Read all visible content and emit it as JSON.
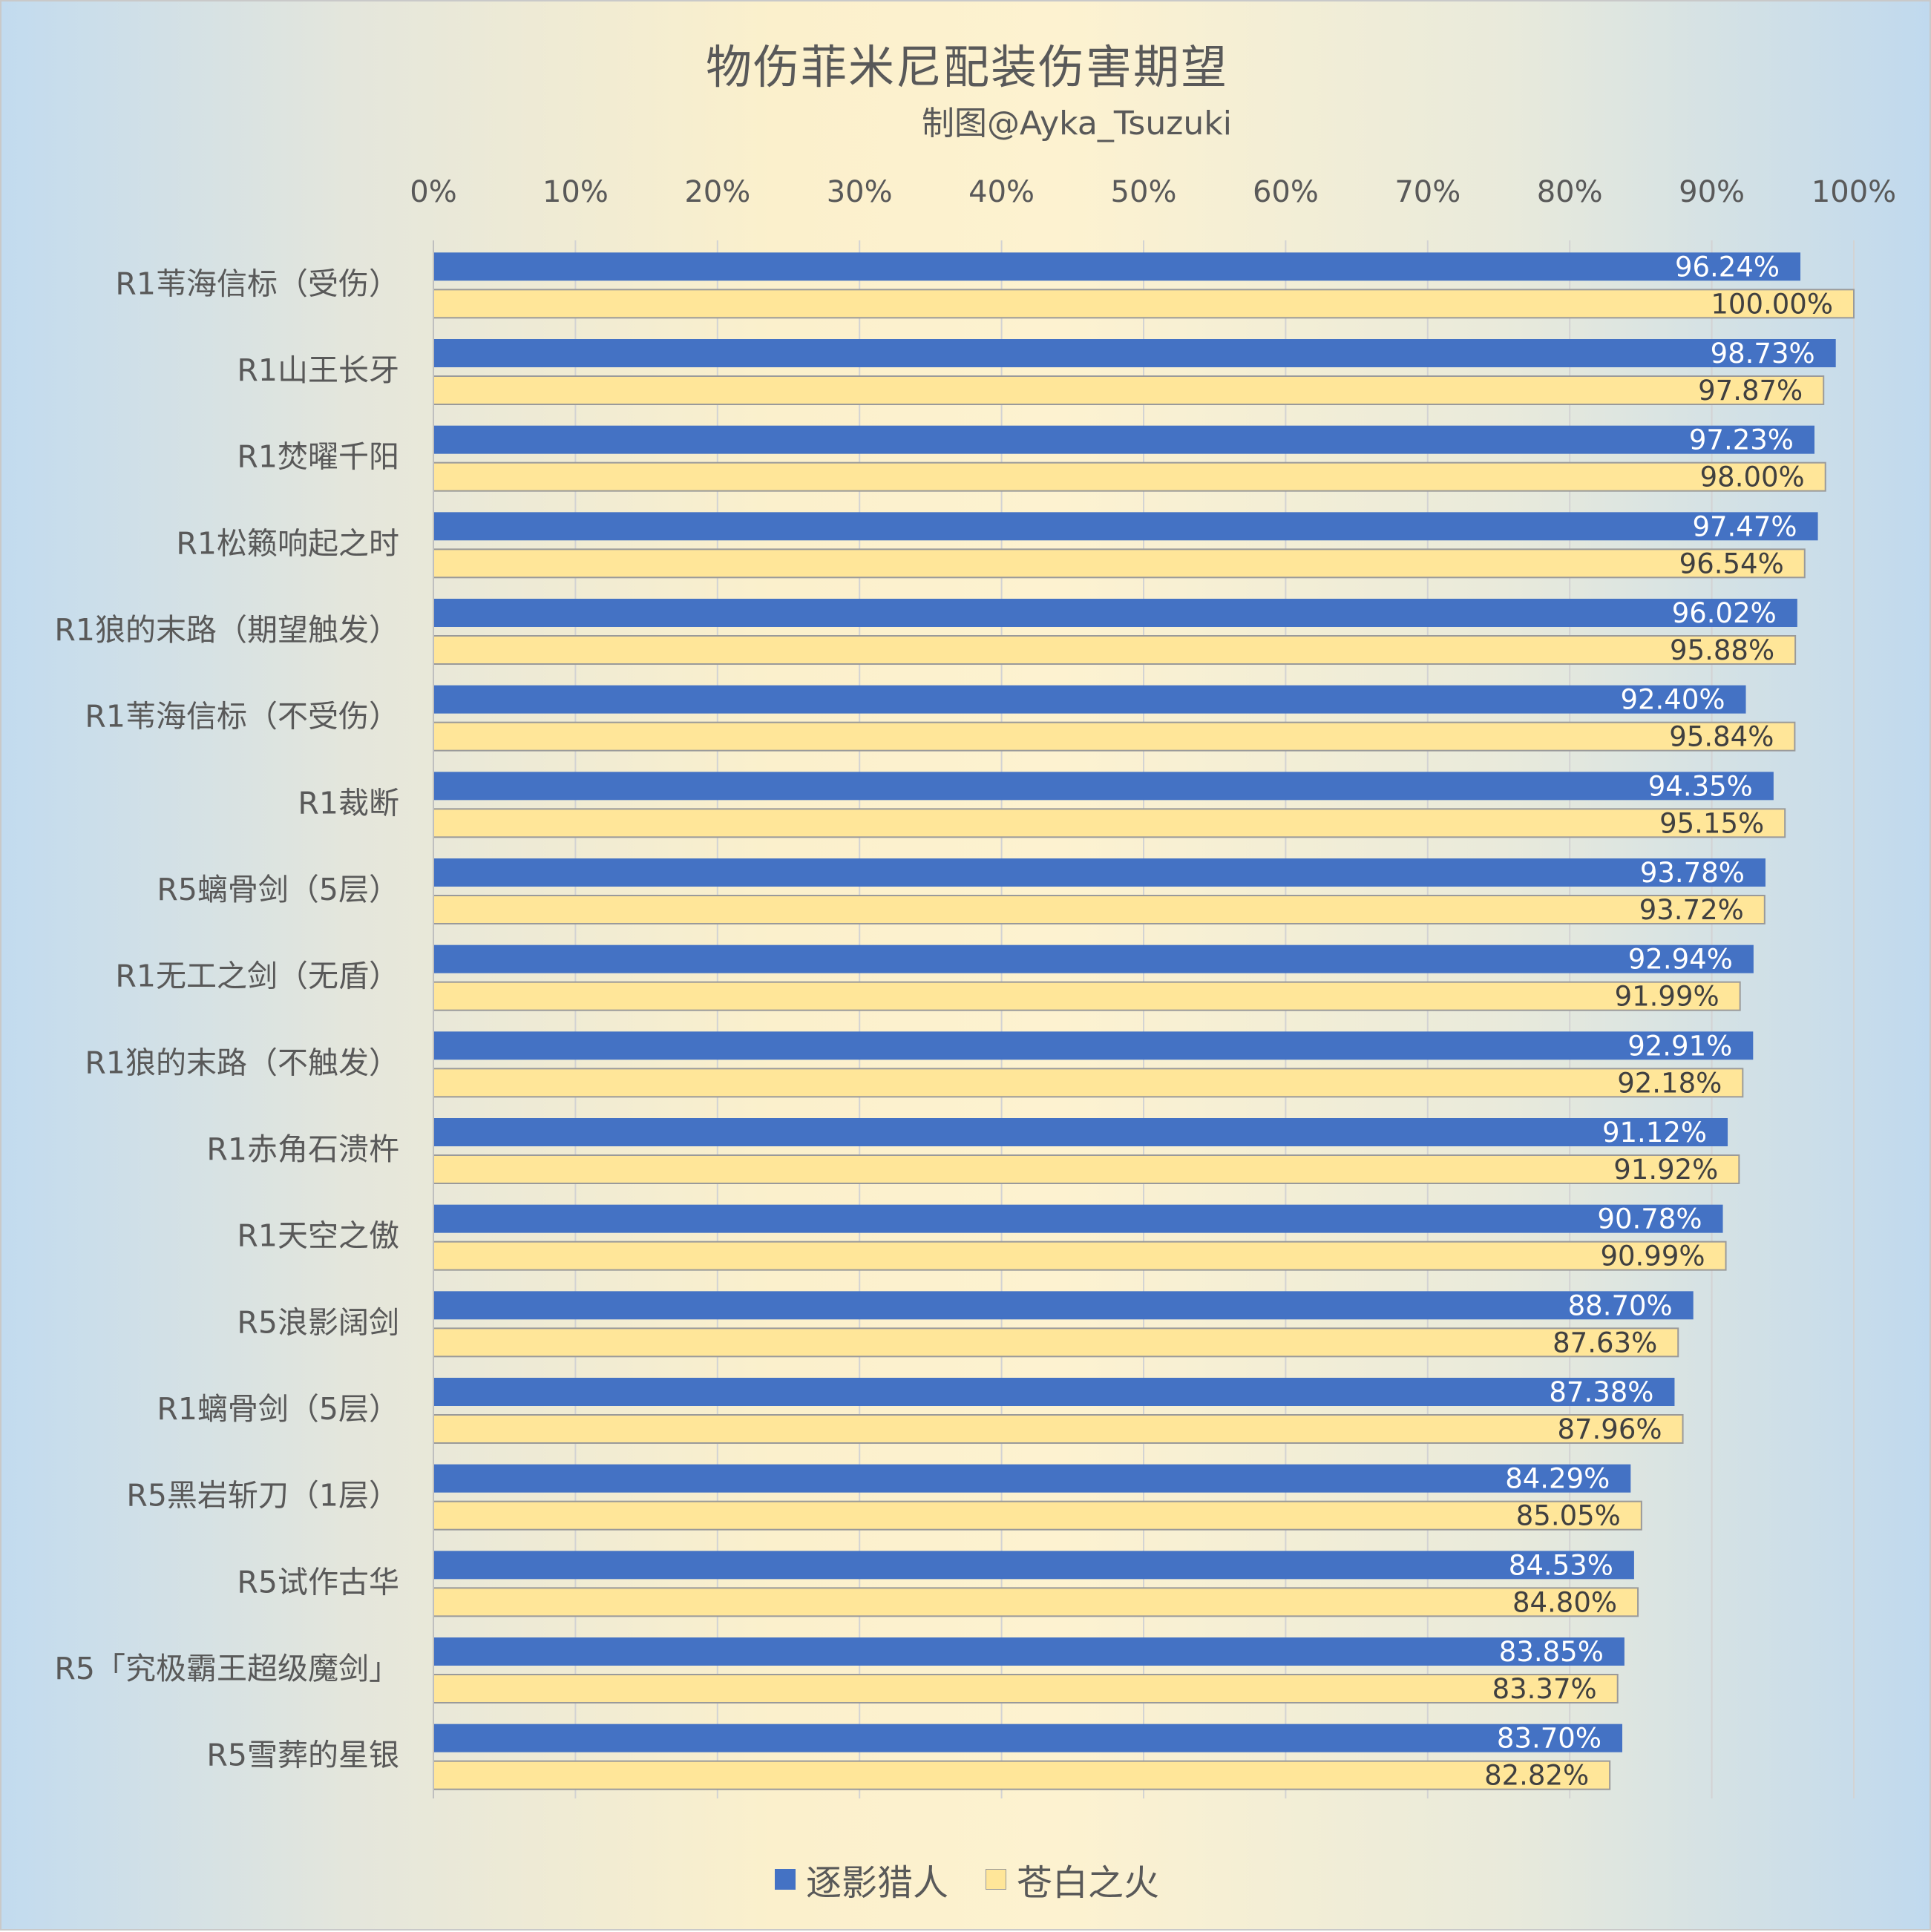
{
  "title": "物伤菲米尼配装伤害期望",
  "subtitle": "制图@Ayka_Tsuzuki",
  "colors": {
    "series_a": "#4472c4",
    "series_b": "#ffe699"
  },
  "chart_data": {
    "type": "bar",
    "orientation": "horizontal",
    "title": "物伤菲米尼配装伤害期望",
    "subtitle": "制图@Ayka_Tsuzuki",
    "xlabel": "",
    "ylabel": "",
    "xlim": [
      0,
      100
    ],
    "x_ticks": [
      "0%",
      "10%",
      "20%",
      "30%",
      "40%",
      "50%",
      "60%",
      "70%",
      "80%",
      "90%",
      "100%"
    ],
    "x_axis_position": "top",
    "grid": true,
    "legend_position": "bottom",
    "categories": [
      "R1苇海信标（受伤）",
      "R1山王长牙",
      "R1焚曜千阳",
      "R1松籁响起之时",
      "R1狼的末路（期望触发）",
      "R1苇海信标（不受伤）",
      "R1裁断",
      "R5螭骨剑（5层）",
      "R1无工之剑（无盾）",
      "R1狼的末路（不触发）",
      "R1赤角石溃杵",
      "R1天空之傲",
      "R5浪影阔剑",
      "R1螭骨剑（5层）",
      "R5黑岩斩刀（1层）",
      "R5试作古华",
      "R5「究极霸王超级魔剑」",
      "R5雪葬的星银"
    ],
    "series": [
      {
        "name": "逐影猎人",
        "color": "#4472c4",
        "values": [
          96.24,
          98.73,
          97.23,
          97.47,
          96.02,
          92.4,
          94.35,
          93.78,
          92.94,
          92.91,
          91.12,
          90.78,
          88.7,
          87.38,
          84.29,
          84.53,
          83.85,
          83.7
        ],
        "labels": [
          "96.24%",
          "98.73%",
          "97.23%",
          "97.47%",
          "96.02%",
          "92.40%",
          "94.35%",
          "93.78%",
          "92.94%",
          "92.91%",
          "91.12%",
          "90.78%",
          "88.70%",
          "87.38%",
          "84.29%",
          "84.53%",
          "83.85%",
          "83.70%"
        ]
      },
      {
        "name": "苍白之火",
        "color": "#ffe699",
        "values": [
          100.0,
          97.87,
          98.0,
          96.54,
          95.88,
          95.84,
          95.15,
          93.72,
          91.99,
          92.18,
          91.92,
          90.99,
          87.63,
          87.96,
          85.05,
          84.8,
          83.37,
          82.82
        ],
        "labels": [
          "100.00%",
          "97.87%",
          "98.00%",
          "96.54%",
          "95.88%",
          "95.84%",
          "95.15%",
          "93.72%",
          "91.99%",
          "92.18%",
          "91.92%",
          "90.99%",
          "87.63%",
          "87.96%",
          "85.05%",
          "84.80%",
          "83.37%",
          "82.82%"
        ]
      }
    ]
  },
  "legend": [
    {
      "label": "逐影猎人",
      "color": "#4472c4"
    },
    {
      "label": "苍白之火",
      "color": "#ffe699"
    }
  ]
}
